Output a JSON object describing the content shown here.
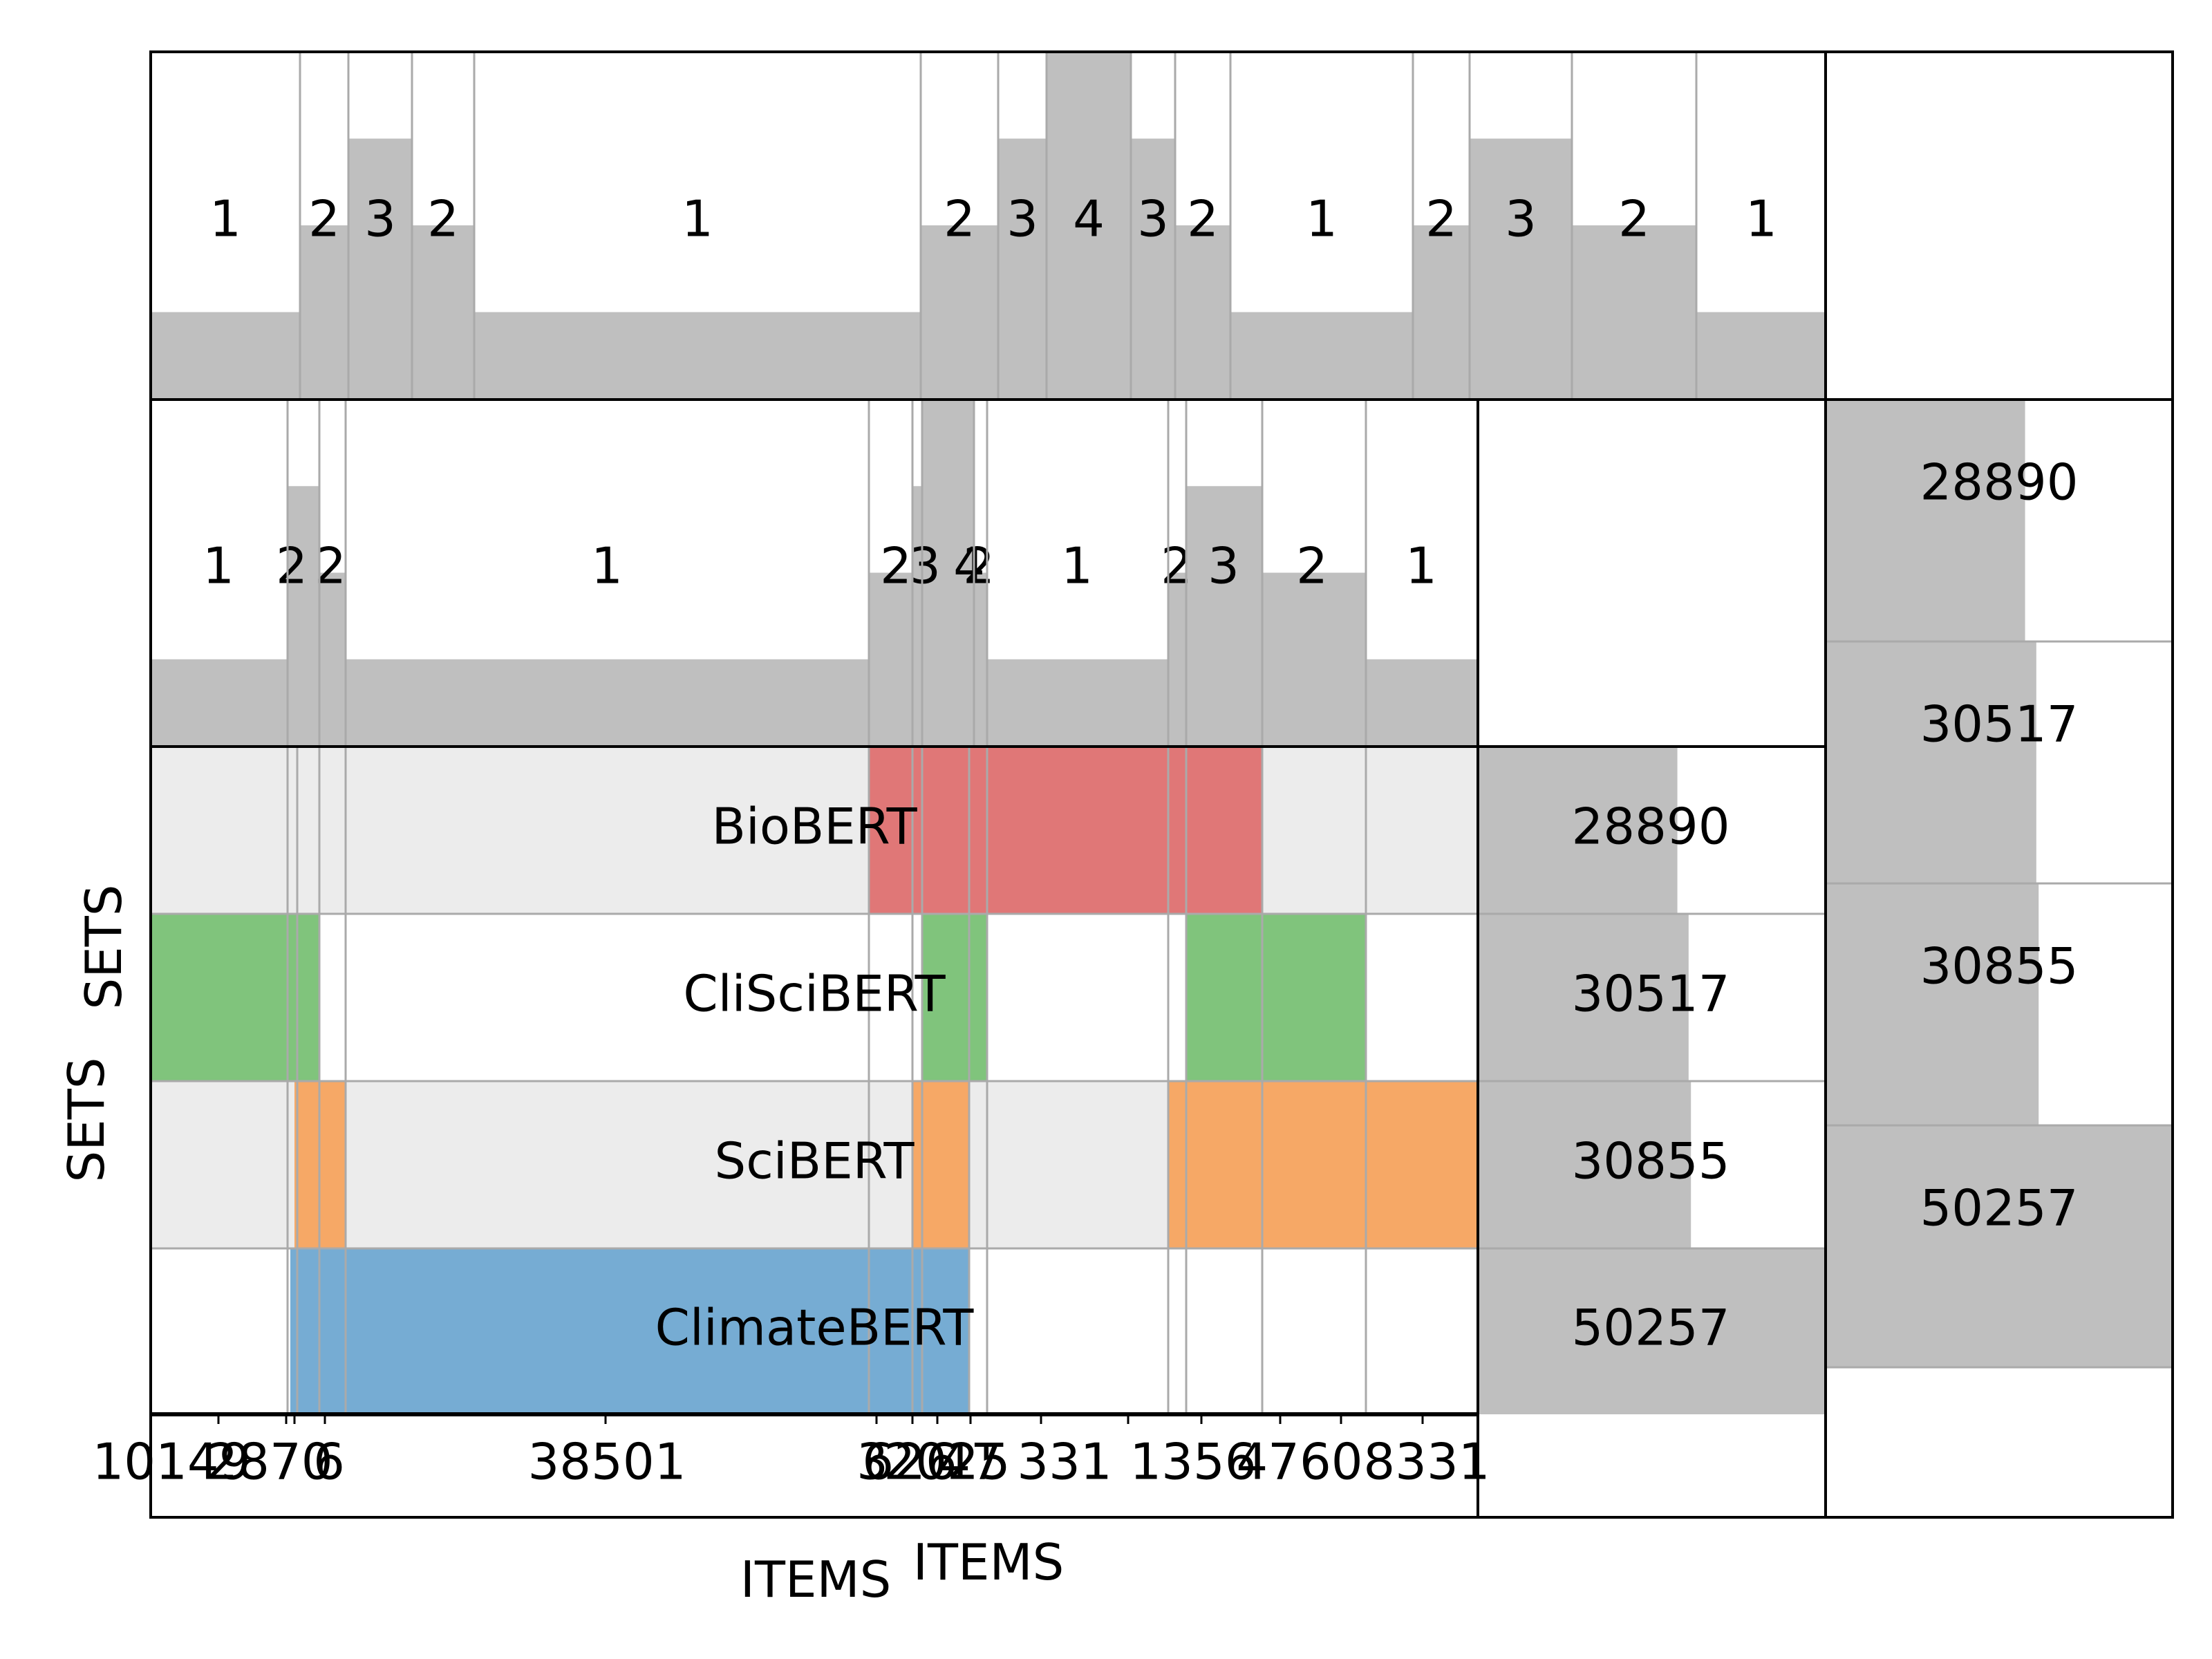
{
  "chart_data": {
    "type": "heatmap",
    "description_free": true,
    "sets": [
      "BioBERT",
      "CliSciBERT",
      "SciBERT",
      "ClimateBERT"
    ],
    "set_colors": [
      "#e07777",
      "#80c47c",
      "#f6a866",
      "#76acd3"
    ],
    "set_sizes": [
      "28890",
      "30517",
      "30855",
      "50257"
    ],
    "set_size_values": [
      28890,
      30517,
      30855,
      50257
    ],
    "top_histogram": {
      "labels": [
        "1",
        "2",
        "3",
        "2",
        "1",
        "2",
        "3",
        "4",
        "3",
        "2",
        "1",
        "2",
        "3",
        "2",
        "1"
      ],
      "values": [
        1,
        2,
        3,
        2,
        1,
        2,
        3,
        4,
        3,
        2,
        1,
        2,
        3,
        2,
        1
      ]
    },
    "mid_histogram": {
      "labels": [
        "1",
        "2",
        "3",
        "2",
        "1",
        "2",
        "3",
        "4",
        "3",
        "2",
        "1",
        "2",
        "3",
        "2",
        "1"
      ],
      "values": [
        1,
        2,
        3,
        2,
        1,
        2,
        3,
        4,
        3,
        2,
        1,
        2,
        3,
        2,
        1
      ]
    },
    "items": {
      "labels": [
        "10149",
        "2870",
        "98",
        "6",
        "38501",
        "3",
        "626",
        "47",
        "2025",
        "17",
        "331",
        "3",
        "1356",
        "4760",
        "8331"
      ],
      "visible_text": [
        "10149",
        "2870",
        "6",
        "38501",
        "3",
        "626",
        "2025",
        "47",
        "331",
        "1356",
        "4760",
        "8331"
      ],
      "membership": [
        [
          0,
          1,
          0,
          0
        ],
        [
          0,
          1,
          1,
          1
        ],
        [
          0,
          1,
          1,
          1
        ],
        [
          0,
          0,
          1,
          1
        ],
        [
          0,
          0,
          0,
          1
        ],
        [
          1,
          0,
          0,
          1
        ],
        [
          1,
          0,
          1,
          1
        ],
        [
          1,
          1,
          1,
          1
        ],
        [
          1,
          1,
          1,
          0
        ],
        [
          1,
          1,
          0,
          0
        ],
        [
          1,
          0,
          0,
          0
        ],
        [
          1,
          0,
          1,
          0
        ],
        [
          1,
          1,
          1,
          0
        ],
        [
          0,
          1,
          1,
          0
        ],
        [
          0,
          0,
          1,
          0
        ]
      ]
    },
    "xlabel_bottom": "ITEMS",
    "xlabel_bottom_2": "ITEMS",
    "ylabel_left": "SETS",
    "ylabel_left_2": "SETS",
    "right_bars": {
      "labels": [
        "28890",
        "30517",
        "30855",
        "50257"
      ],
      "values": [
        28890,
        30517,
        30855,
        50257
      ],
      "xlim": [
        0,
        50257
      ]
    },
    "grid": false,
    "legend": "none"
  }
}
